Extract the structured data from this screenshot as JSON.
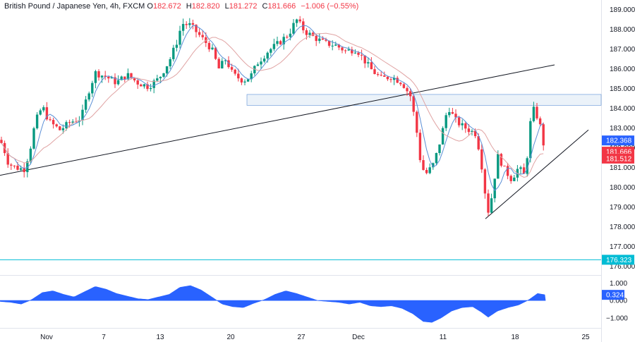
{
  "header": {
    "symbol": "British Pound / Japanese Yen, 4h, FXCM",
    "o_label": "O",
    "o": "182.672",
    "h_label": "H",
    "h": "182.820",
    "l_label": "L",
    "l": "181.272",
    "c_label": "C",
    "c": "181.666",
    "change": "−1.006 (−0.55%)"
  },
  "colors": {
    "up": "#089981",
    "down": "#f23645",
    "ma_fast": "#5b8fd6",
    "ma_slow": "#e0a3a3",
    "trendline": "#131722",
    "zone_fill": "#e3ecf7",
    "zone_border": "#5b8fd6",
    "level_line": "#00bcd4",
    "oscillator": "#2962ff",
    "tag_blue": "#2962ff",
    "tag_red": "#f23645",
    "tag_cyan": "#00bcd4"
  },
  "chart_data": [
    {
      "type": "candlestick",
      "title": "",
      "x_ticks": [
        "Nov",
        "7",
        "13",
        "20",
        "27",
        "Dec",
        "11",
        "18",
        "25"
      ],
      "y_ticks": [
        "176.000",
        "177.000",
        "178.000",
        "179.000",
        "180.000",
        "181.000",
        "182.000",
        "183.000",
        "184.000",
        "185.000",
        "186.000",
        "187.000",
        "188.000",
        "189.000"
      ],
      "ylim": [
        175.8,
        189.2
      ],
      "price_path": [
        [
          0,
          182.4
        ],
        [
          5,
          182.0
        ],
        [
          12,
          181.2
        ],
        [
          22,
          181.0
        ],
        [
          34,
          180.9
        ],
        [
          42,
          181.8
        ],
        [
          50,
          183.3
        ],
        [
          60,
          184.1
        ],
        [
          70,
          183.3
        ],
        [
          85,
          182.9
        ],
        [
          100,
          183.3
        ],
        [
          115,
          183.5
        ],
        [
          125,
          184.8
        ],
        [
          135,
          185.8
        ],
        [
          150,
          185.6
        ],
        [
          165,
          185.3
        ],
        [
          180,
          185.7
        ],
        [
          195,
          185.3
        ],
        [
          210,
          185.1
        ],
        [
          225,
          185.5
        ],
        [
          240,
          186.4
        ],
        [
          250,
          187.3
        ],
        [
          258,
          188.3
        ],
        [
          270,
          188.2
        ],
        [
          285,
          187.6
        ],
        [
          300,
          187.0
        ],
        [
          310,
          186.0
        ],
        [
          320,
          186.5
        ],
        [
          330,
          185.7
        ],
        [
          345,
          185.4
        ],
        [
          355,
          185.6
        ],
        [
          365,
          186.3
        ],
        [
          380,
          186.9
        ],
        [
          395,
          187.3
        ],
        [
          410,
          187.8
        ],
        [
          420,
          188.5
        ],
        [
          432,
          187.9
        ],
        [
          445,
          187.6
        ],
        [
          460,
          187.3
        ],
        [
          475,
          187.2
        ],
        [
          490,
          186.9
        ],
        [
          505,
          187.0
        ],
        [
          515,
          186.5
        ],
        [
          525,
          186.0
        ],
        [
          540,
          185.5
        ],
        [
          555,
          185.6
        ],
        [
          570,
          185.3
        ],
        [
          582,
          184.6
        ],
        [
          590,
          183.0
        ],
        [
          597,
          181.0
        ],
        [
          605,
          180.7
        ],
        [
          615,
          181.2
        ],
        [
          625,
          182.5
        ],
        [
          635,
          184.1
        ],
        [
          645,
          183.4
        ],
        [
          655,
          183.1
        ],
        [
          665,
          182.9
        ],
        [
          675,
          182.7
        ],
        [
          682,
          181.3
        ],
        [
          688,
          179.6
        ],
        [
          693,
          178.6
        ],
        [
          700,
          180.3
        ],
        [
          706,
          181.6
        ],
        [
          715,
          180.9
        ],
        [
          725,
          180.4
        ],
        [
          735,
          181.0
        ],
        [
          745,
          180.5
        ],
        [
          750,
          183.0
        ],
        [
          757,
          184.0
        ],
        [
          765,
          183.2
        ],
        [
          773,
          181.67
        ]
      ],
      "fast_ma_label": "",
      "slow_ma_label": "",
      "resistance_zone": [
        184.15,
        184.7
      ],
      "rising_trendline": [
        [
          0,
          180.6
        ],
        [
          786,
          186.2
        ]
      ],
      "support_trendline": [
        [
          688,
          178.4
        ],
        [
          834,
          182.9
        ]
      ],
      "horizontal_level": 176.323,
      "price_tags": [
        {
          "label": "182.368",
          "value": 182.368,
          "kind": "blue"
        },
        {
          "label": "181.666",
          "value": 181.8,
          "kind": "red"
        },
        {
          "label": "181.512",
          "value": 181.45,
          "kind": "red"
        },
        {
          "label": "176.323",
          "value": 176.323,
          "kind": "cyan"
        }
      ]
    },
    {
      "type": "area",
      "title": "",
      "y_ticks": [
        "1.000",
        "0.000",
        "-1.000"
      ],
      "ylim": [
        -1.45,
        1.3
      ],
      "current_value_label": "0.324",
      "current_value": 0.324,
      "osc_path": [
        [
          0,
          -0.05
        ],
        [
          15,
          -0.1
        ],
        [
          30,
          -0.2
        ],
        [
          45,
          0.05
        ],
        [
          60,
          0.45
        ],
        [
          75,
          0.55
        ],
        [
          90,
          0.35
        ],
        [
          105,
          0.2
        ],
        [
          120,
          0.5
        ],
        [
          135,
          0.8
        ],
        [
          150,
          0.65
        ],
        [
          165,
          0.4
        ],
        [
          180,
          0.25
        ],
        [
          195,
          0.1
        ],
        [
          210,
          0.05
        ],
        [
          225,
          0.2
        ],
        [
          240,
          0.35
        ],
        [
          255,
          0.75
        ],
        [
          270,
          0.85
        ],
        [
          285,
          0.6
        ],
        [
          300,
          0.2
        ],
        [
          315,
          -0.2
        ],
        [
          330,
          -0.35
        ],
        [
          345,
          -0.4
        ],
        [
          360,
          -0.15
        ],
        [
          375,
          0.05
        ],
        [
          390,
          0.35
        ],
        [
          405,
          0.55
        ],
        [
          420,
          0.4
        ],
        [
          435,
          0.2
        ],
        [
          450,
          0.0
        ],
        [
          465,
          -0.05
        ],
        [
          480,
          -0.1
        ],
        [
          495,
          -0.2
        ],
        [
          510,
          -0.1
        ],
        [
          525,
          -0.3
        ],
        [
          540,
          -0.35
        ],
        [
          555,
          -0.3
        ],
        [
          570,
          -0.45
        ],
        [
          585,
          -0.75
        ],
        [
          600,
          -1.2
        ],
        [
          612,
          -1.25
        ],
        [
          625,
          -1.0
        ],
        [
          640,
          -0.6
        ],
        [
          655,
          -0.4
        ],
        [
          670,
          -0.35
        ],
        [
          682,
          -0.65
        ],
        [
          692,
          -0.95
        ],
        [
          705,
          -0.6
        ],
        [
          720,
          -0.4
        ],
        [
          735,
          -0.25
        ],
        [
          750,
          0.05
        ],
        [
          762,
          0.4
        ],
        [
          773,
          0.32
        ]
      ]
    }
  ]
}
